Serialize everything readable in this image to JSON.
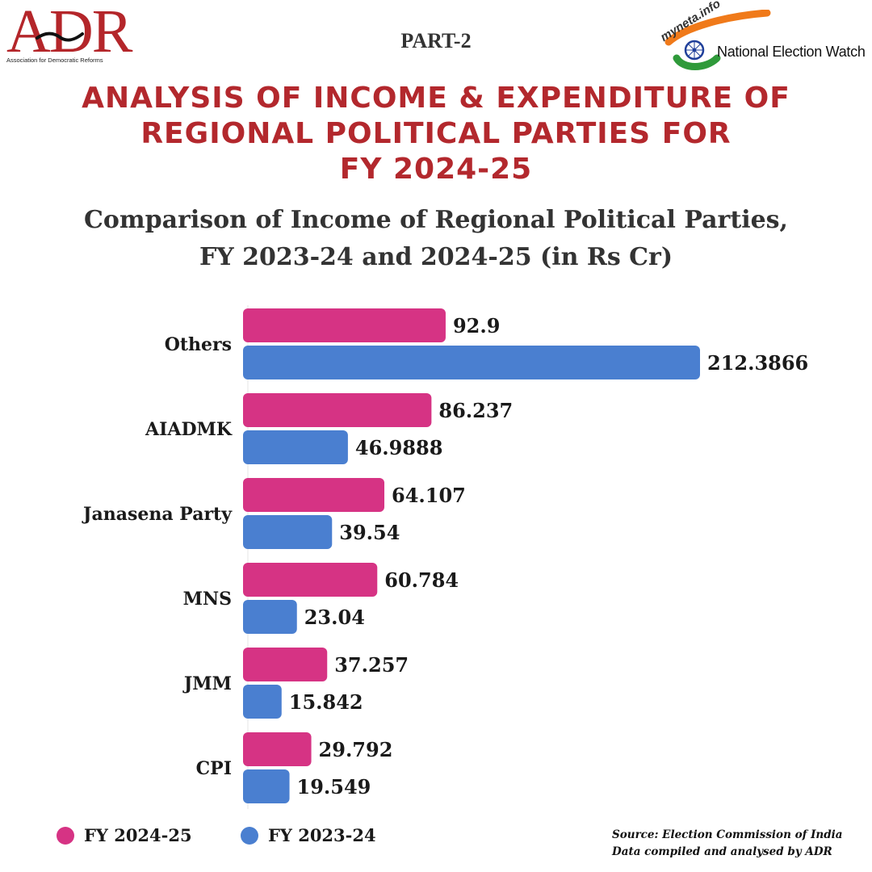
{
  "header": {
    "adr_logo_text": "ADR",
    "adr_tagline": "Association for Democratic Reforms",
    "part_label": "PART-2",
    "myneta_text": "myneta.info",
    "new_text": "National Election Watch"
  },
  "headline": {
    "line1": "ANALYSIS OF INCOME & EXPENDITURE OF",
    "line2": "REGIONAL POLITICAL PARTIES FOR",
    "line3": "FY 2024-25"
  },
  "chart_title": {
    "line1": "Comparison of Income of Regional Political Parties,",
    "line2": "FY 2023-24 and 2024-25 (in Rs Cr)"
  },
  "colors": {
    "headline": "#b3282d",
    "fy2425": "#d63384",
    "fy2324": "#4a7fd0"
  },
  "chart_data": {
    "type": "bar",
    "orientation": "horizontal",
    "title": "Comparison of Income of Regional Political Parties, FY 2023-24 and 2024-25 (in Rs Cr)",
    "categories": [
      "Others",
      "AIADMK",
      "Janasena Party",
      "MNS",
      "JMM",
      "CPI"
    ],
    "series": [
      {
        "name": "FY 2024-25",
        "color": "#d63384",
        "values": [
          92.9,
          86.237,
          64.107,
          60.784,
          37.257,
          29.792
        ],
        "labels": [
          "92.9",
          "86.237",
          "64.107",
          "60.784",
          "37.257",
          "29.792"
        ]
      },
      {
        "name": "FY 2023-24",
        "color": "#4a7fd0",
        "values": [
          212.3866,
          46.9888,
          39.54,
          23.04,
          15.842,
          19.549
        ],
        "labels": [
          "212.3866",
          "46.9888",
          "39.54",
          "23.04",
          "15.842",
          "19.549"
        ]
      }
    ],
    "xlim": [
      0,
      212.3866
    ],
    "grid": false,
    "legend": "bottom-left"
  },
  "footer": {
    "line1": "Source: Election Commission of India",
    "line2": "Data compiled and analysed by ADR"
  }
}
